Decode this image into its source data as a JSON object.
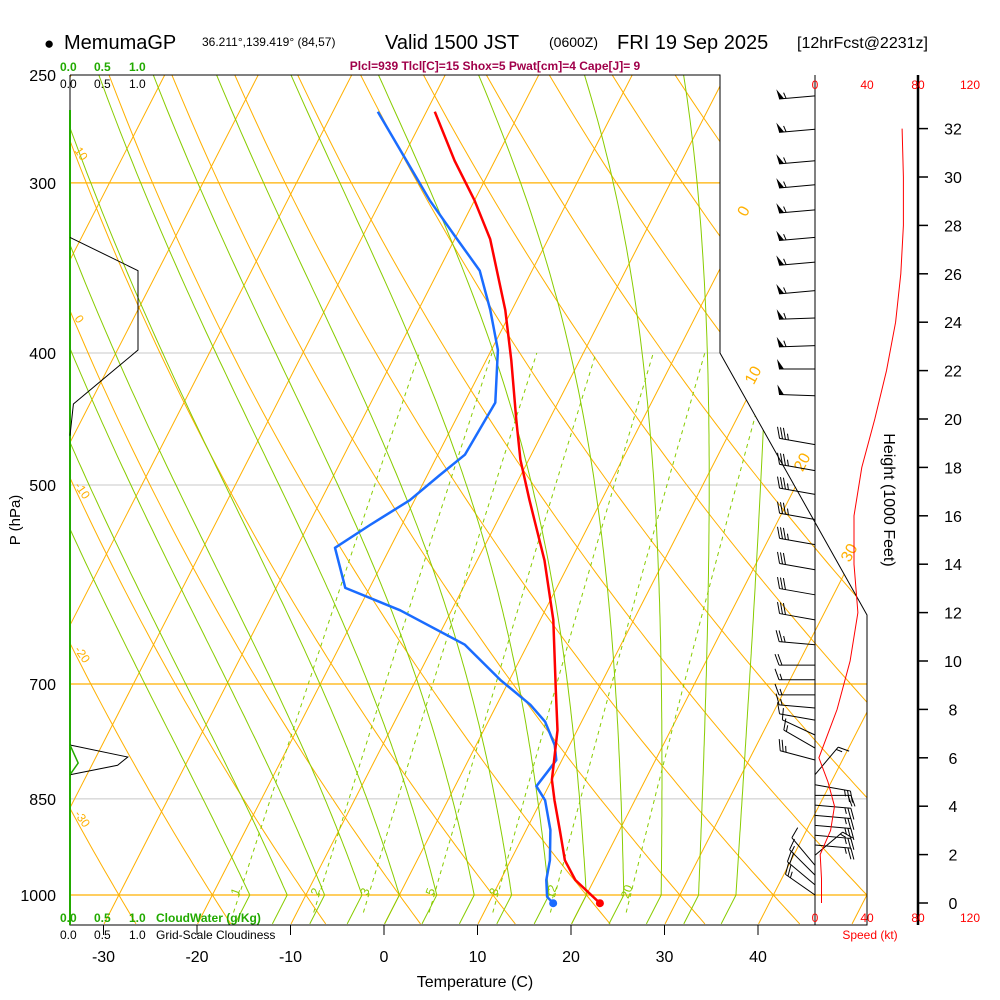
{
  "header": {
    "bullet": "●",
    "station": "MemumaGP",
    "coords": "36.211°,139.419° (84,57)",
    "valid": "Valid 1500 JST",
    "utc": "(0600Z)",
    "date": "FRI 19 Sep 2025",
    "forecast": "[12hrFcst@2231z]"
  },
  "indices": "Plcl=939 Tlcl[C]=15 Shox=5 Pwat[cm]=4 Cape[J]= 9",
  "cloud_axis": {
    "ticks": [
      "0.0",
      "0.5",
      "1.0"
    ],
    "cloudwater_label": "CloudWater (g/Kg)",
    "cloudiness_label": "Grid-Scale Cloudiness"
  },
  "speed_axis": {
    "ticks": [
      "0",
      "40",
      "80",
      "120"
    ],
    "label": "Speed (kt)"
  },
  "height_axis": {
    "label": "Height (1000 Feet)"
  },
  "colors": {
    "temperature": "#ff0000",
    "dewpoint": "#1a6cff",
    "isotherm": "#ffb000",
    "moist": "#88cc00",
    "cloudwater": "#22aa00",
    "indices": "#a0004a"
  },
  "chart_data": {
    "type": "skew-t",
    "xlabel": "Temperature (C)",
    "ylabel": "P (hPa)",
    "x_ticks": [
      -30,
      -20,
      -10,
      0,
      10,
      20,
      30,
      40
    ],
    "pressure_ticks": [
      250,
      300,
      400,
      500,
      700,
      850,
      1000
    ],
    "height_ticks_kft": [
      0,
      2,
      4,
      6,
      8,
      10,
      12,
      14,
      16,
      18,
      20,
      22,
      24,
      26,
      28,
      30,
      32
    ],
    "isotherm_labels": [
      "0",
      "10",
      "20",
      "30"
    ],
    "theta_labels": [
      "10",
      "0",
      "-10",
      "-20",
      "-30"
    ],
    "mixing_ratio_labels": [
      "1",
      "2",
      "3",
      "5",
      "8",
      "12",
      "20"
    ],
    "temperature": [
      [
        1014,
        21.9
      ],
      [
        975,
        18.0
      ],
      [
        943,
        15.8
      ],
      [
        896,
        13.6
      ],
      [
        852,
        11.4
      ],
      [
        823,
        10.0
      ],
      [
        757,
        7.9
      ],
      [
        707,
        5.5
      ],
      [
        628,
        1.4
      ],
      [
        568,
        -2.8
      ],
      [
        513,
        -7.7
      ],
      [
        479,
        -10.9
      ],
      [
        448,
        -13.5
      ],
      [
        405,
        -17.3
      ],
      [
        372,
        -20.7
      ],
      [
        330,
        -26.2
      ],
      [
        309,
        -30.0
      ],
      [
        289,
        -34.3
      ],
      [
        266,
        -39.1
      ]
    ],
    "dewpoint": [
      [
        1014,
        16.9
      ],
      [
        1003,
        15.9
      ],
      [
        975,
        14.9
      ],
      [
        943,
        14.2
      ],
      [
        896,
        12.6
      ],
      [
        852,
        10.4
      ],
      [
        832,
        8.7
      ],
      [
        812,
        9.1
      ],
      [
        796,
        9.4
      ],
      [
        776,
        8.4
      ],
      [
        746,
        6.1
      ],
      [
        725,
        3.6
      ],
      [
        695,
        -1.0
      ],
      [
        655,
        -6.7
      ],
      [
        618,
        -15.5
      ],
      [
        595,
        -22.6
      ],
      [
        556,
        -25.9
      ],
      [
        535,
        -23.4
      ],
      [
        513,
        -20.5
      ],
      [
        492,
        -18.7
      ],
      [
        475,
        -17.1
      ],
      [
        435,
        -16.7
      ],
      [
        398,
        -19.3
      ],
      [
        372,
        -22.3
      ],
      [
        348,
        -25.6
      ],
      [
        328,
        -30.2
      ],
      [
        309,
        -34.8
      ],
      [
        266,
        -45.2
      ]
    ],
    "winds": [
      [
        259,
        265,
        55
      ],
      [
        274,
        265,
        55
      ],
      [
        289,
        265,
        55
      ],
      [
        301,
        265,
        55
      ],
      [
        314,
        265,
        55
      ],
      [
        329,
        265,
        55
      ],
      [
        343,
        265,
        55
      ],
      [
        360,
        265,
        55
      ],
      [
        377,
        268,
        55
      ],
      [
        395,
        268,
        55
      ],
      [
        411,
        270,
        50
      ],
      [
        430,
        272,
        50
      ],
      [
        467,
        280,
        35
      ],
      [
        488,
        280,
        35
      ],
      [
        508,
        280,
        35
      ],
      [
        530,
        280,
        35
      ],
      [
        553,
        280,
        35
      ],
      [
        577,
        280,
        30
      ],
      [
        602,
        280,
        30
      ],
      [
        628,
        280,
        30
      ],
      [
        655,
        275,
        25
      ],
      [
        678,
        270,
        20
      ],
      [
        695,
        270,
        15
      ],
      [
        713,
        270,
        15
      ],
      [
        729,
        275,
        15
      ],
      [
        744,
        280,
        10
      ],
      [
        763,
        295,
        10
      ],
      [
        780,
        300,
        15
      ],
      [
        796,
        285,
        25
      ],
      [
        816,
        40,
        15
      ],
      [
        830,
        100,
        25
      ],
      [
        845,
        90,
        20
      ],
      [
        859,
        95,
        25
      ],
      [
        874,
        95,
        25
      ],
      [
        889,
        95,
        25
      ],
      [
        904,
        95,
        25
      ],
      [
        919,
        95,
        25
      ],
      [
        935,
        50,
        15
      ],
      [
        951,
        320,
        10
      ],
      [
        967,
        315,
        15
      ],
      [
        983,
        310,
        20
      ],
      [
        1000,
        305,
        25
      ]
    ],
    "speed_profile": [
      [
        0,
        5
      ],
      [
        1,
        5
      ],
      [
        2,
        4
      ],
      [
        3,
        12
      ],
      [
        4,
        15
      ],
      [
        5,
        10
      ],
      [
        6,
        3
      ],
      [
        7,
        10
      ],
      [
        8,
        17
      ],
      [
        10,
        27
      ],
      [
        12,
        33
      ],
      [
        14,
        30
      ],
      [
        16,
        30
      ],
      [
        18,
        36
      ],
      [
        20,
        46
      ],
      [
        22,
        55
      ],
      [
        24,
        62
      ],
      [
        26,
        66
      ],
      [
        28,
        68
      ],
      [
        30,
        68
      ],
      [
        32,
        67
      ]
    ],
    "cloudiness": [
      [
        460,
        0.0
      ],
      [
        436,
        0.05
      ],
      [
        398,
        1.0
      ],
      [
        348,
        1.0
      ],
      [
        329,
        0.0
      ]
    ],
    "cloudiness_low": [
      [
        816,
        0.0
      ],
      [
        803,
        0.7
      ],
      [
        792,
        0.85
      ],
      [
        776,
        0.0
      ]
    ],
    "cloudwater_low": [
      [
        816,
        0.0
      ],
      [
        800,
        0.12
      ],
      [
        776,
        0.0
      ]
    ]
  }
}
